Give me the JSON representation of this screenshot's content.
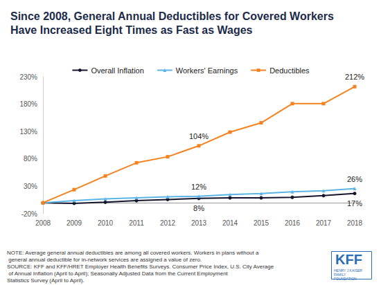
{
  "chart_data": {
    "type": "line",
    "title": "Since 2008, General Annual Deductibles for Covered Workers\nHave Increased Eight Times as Fast as Wages",
    "categories": [
      "2008",
      "2009",
      "2010",
      "2011",
      "2012",
      "2013",
      "2014",
      "2015",
      "2016",
      "2017",
      "2018"
    ],
    "series": [
      {
        "name": "Overall Inflation",
        "color": "#14142b",
        "marker": "circle",
        "values": [
          0,
          -1,
          1,
          4,
          6,
          8,
          9,
          9,
          10,
          13,
          17
        ]
      },
      {
        "name": "Workers' Earnings",
        "color": "#5bb4e5",
        "marker": "triangle",
        "values": [
          0,
          4,
          7,
          9,
          11,
          12,
          15,
          17,
          20,
          22,
          26
        ]
      },
      {
        "name": "Deductibles",
        "color": "#f5821f",
        "marker": "rect",
        "values": [
          0,
          24,
          49,
          73,
          84,
          104,
          129,
          146,
          181,
          181,
          212
        ]
      }
    ],
    "annotations": [
      {
        "series": "Deductibles",
        "x": "2013",
        "value": 104,
        "text": "104%"
      },
      {
        "series": "Deductibles",
        "x": "2018",
        "value": 212,
        "text": "212%"
      },
      {
        "series": "Workers' Earnings",
        "x": "2013",
        "value": 12,
        "text": "12%"
      },
      {
        "series": "Workers' Earnings",
        "x": "2018",
        "value": 26,
        "text": "26%"
      },
      {
        "series": "Overall Inflation",
        "x": "2013",
        "value": 8,
        "text": "8%"
      },
      {
        "series": "Overall Inflation",
        "x": "2018",
        "value": 17,
        "text": "17%"
      }
    ],
    "ylim": [
      -20,
      230
    ],
    "yticks": [
      {
        "value": -20,
        "label": "-20%"
      },
      {
        "value": 30,
        "label": "30%"
      },
      {
        "value": 80,
        "label": "80%"
      },
      {
        "value": 130,
        "label": "130%"
      },
      {
        "value": 180,
        "label": "180%"
      },
      {
        "value": 230,
        "label": "230%"
      }
    ],
    "grid": false,
    "legend": "top",
    "note": "NOTE: Average general annual deductibles are among all covered workers. Workers in plans without a general annual deductible for in-network services are assigned a value of zero.",
    "source": "SOURCE: KFF and KFF/HRET Employer Health Benefits Surveys. Consumer Price Index, U.S. City Average of Annual Inflation (April to April); Seasonally Adjusted Data from the Current Employment Statistics Survey (April to April).",
    "logo": "KFF",
    "logo_subtitle": "HENRY J KAISER FAMILY FOUNDATION"
  }
}
